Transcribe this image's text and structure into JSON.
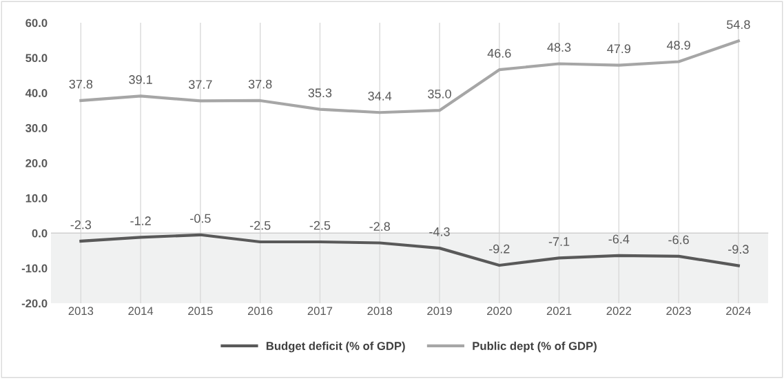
{
  "chart_data": {
    "type": "line",
    "categories": [
      "2013",
      "2014",
      "2015",
      "2016",
      "2017",
      "2018",
      "2019",
      "2020",
      "2021",
      "2022",
      "2023",
      "2024"
    ],
    "series": [
      {
        "name": "Budget deficit (% of GDP)",
        "color": "#595959",
        "values": [
          -2.3,
          -1.2,
          -0.5,
          -2.5,
          -2.5,
          -2.8,
          -4.3,
          -9.2,
          -7.1,
          -6.4,
          -6.6,
          -9.3
        ],
        "value_labels": [
          "-2.3",
          "-1.2",
          "-0.5",
          "-2.5",
          "-2.5",
          "-2.8",
          "-4.3",
          "-9.2",
          "-7.1",
          "-6.4",
          "-6.6",
          "-9.3"
        ]
      },
      {
        "name": "Public dept (% of GDP)",
        "color": "#a6a6a6",
        "values": [
          37.8,
          39.1,
          37.7,
          37.8,
          35.3,
          34.4,
          35,
          46.6,
          48.3,
          47.9,
          48.9,
          54.8
        ],
        "value_labels": [
          "37.8",
          "39.1",
          "37.7",
          "37.8",
          "35.3",
          "34.4",
          "35.0",
          "46.6",
          "48.3",
          "47.9",
          "48.9",
          "54.8"
        ]
      }
    ],
    "ylim": [
      -20,
      60
    ],
    "yticks": [
      {
        "value": -20,
        "label": "-20.0"
      },
      {
        "value": -10,
        "label": "-10.0"
      },
      {
        "value": 0,
        "label": "0.0"
      },
      {
        "value": 10,
        "label": "10.0"
      },
      {
        "value": 20,
        "label": "20.0"
      },
      {
        "value": 30,
        "label": "30.0"
      },
      {
        "value": 40,
        "label": "40.0"
      },
      {
        "value": 50,
        "label": "50.0"
      },
      {
        "value": 60,
        "label": "60.0"
      }
    ],
    "grid": "x",
    "ref_lines": [
      {
        "axis": "y",
        "value": 0,
        "label": null,
        "color": "#d0d0d0"
      }
    ],
    "bands": [
      {
        "axis": "y",
        "from": -20,
        "to": 0,
        "label": null,
        "color": "#f0f1f1"
      }
    ],
    "legend": "bottom",
    "marker": "none",
    "line_style": "solid"
  }
}
